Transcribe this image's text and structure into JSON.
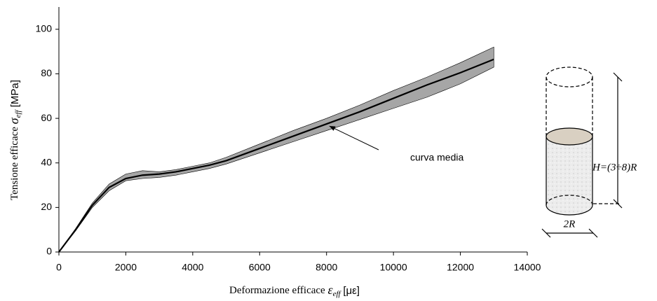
{
  "chart_data": {
    "type": "line",
    "y_label": {
      "text": "Tensione efficace",
      "symbol": "σ",
      "subscript": "eff",
      "unit": "[MPa]"
    },
    "x_label": {
      "text": "Deformazione efficace",
      "symbol": "ε",
      "subscript": "eff",
      "unit": "[με]"
    },
    "x": [
      0,
      500,
      1000,
      1500,
      2000,
      2500,
      3000,
      3500,
      4000,
      4500,
      5000,
      6000,
      7000,
      8000,
      9000,
      10000,
      11000,
      12000,
      13000
    ],
    "series": [
      {
        "color": "#000000",
        "values": [
          0,
          10,
          21,
          29,
          33,
          34.5,
          35,
          36,
          37.5,
          39,
          41,
          46.5,
          52,
          57.5,
          63,
          69,
          75,
          80.5,
          86.5
        ]
      }
    ],
    "band": {
      "color": "#a6a6a6",
      "upper": [
        0,
        10.5,
        22,
        30.5,
        35,
        36.5,
        36,
        37,
        38.5,
        40,
        42.5,
        48.5,
        54.5,
        60,
        66,
        72.5,
        78.5,
        85,
        92
      ],
      "lower": [
        0,
        9.5,
        20,
        27.5,
        32,
        33,
        33.5,
        34.5,
        36,
        37.5,
        39.5,
        44.5,
        49.5,
        54.5,
        59.5,
        64.5,
        69.5,
        75.5,
        83
      ]
    },
    "annotation": {
      "text": "curva media",
      "x": 8000,
      "y": 57.5
    },
    "xlim": [
      0,
      14000
    ],
    "xticks": [
      0,
      2000,
      4000,
      6000,
      8000,
      10000,
      12000,
      14000
    ],
    "ylim": [
      0,
      110
    ],
    "yticks": [
      0,
      20,
      40,
      60,
      80,
      100
    ]
  },
  "diagram": {
    "height_label": "H=(3÷8)R",
    "diameter_label": "2R"
  }
}
